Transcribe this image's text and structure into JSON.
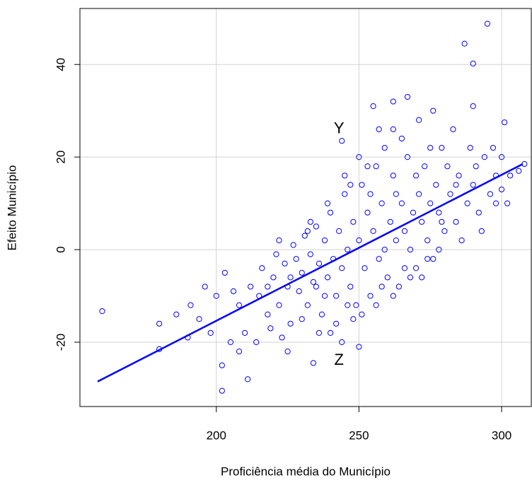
{
  "chart_data": {
    "type": "scatter",
    "xlabel": "Proficiência média do Município",
    "ylabel": "Efeito Município",
    "xlim": [
      152.2,
      310.4
    ],
    "ylim": [
      -33.9,
      52.1
    ],
    "xticks": [
      200,
      250,
      300
    ],
    "yticks": [
      -20,
      0,
      20,
      40
    ],
    "grid": true,
    "color": "#0000ff",
    "x": [
      160,
      180,
      180,
      202,
      202,
      211,
      234,
      244,
      250,
      287,
      290,
      295,
      290,
      301,
      267,
      255,
      262,
      306,
      308,
      300,
      300,
      298,
      186,
      191,
      196,
      200,
      203,
      205,
      208,
      215,
      218,
      220,
      222,
      224,
      225,
      226,
      228,
      229,
      230,
      231,
      232,
      233,
      234,
      235,
      236,
      237,
      238,
      239,
      240,
      241,
      242,
      243,
      244,
      245,
      246,
      247,
      248,
      249,
      250,
      251,
      252,
      253,
      254,
      255,
      256,
      257,
      258,
      259,
      260,
      261,
      262,
      263,
      264,
      265,
      266,
      267,
      268,
      269,
      270,
      271,
      272,
      273,
      274,
      275,
      276,
      277,
      278,
      279,
      280,
      282,
      284,
      285,
      288,
      290,
      292,
      294,
      296,
      298,
      303,
      210,
      212,
      214,
      216,
      219,
      221,
      223,
      227,
      230,
      233,
      236,
      239,
      242,
      245,
      248,
      251,
      253,
      256,
      259,
      262,
      265,
      268,
      272,
      275,
      278,
      281,
      286,
      289,
      293,
      283,
      271,
      266,
      244,
      246,
      238,
      235,
      232,
      226,
      222,
      218,
      208,
      206,
      194,
      198,
      190,
      225,
      240,
      257,
      262,
      276,
      250,
      247,
      254,
      258,
      263,
      270,
      274,
      279,
      284,
      291,
      297,
      302
    ],
    "y": [
      -13.3,
      -16,
      -21.5,
      -30.5,
      -25,
      -28,
      -24.5,
      23.5,
      -21,
      44.5,
      40.2,
      48.8,
      31,
      27.5,
      33,
      31,
      32,
      17,
      18.5,
      20,
      13,
      10,
      -14,
      -12,
      -8,
      -10,
      -5,
      -20,
      -22,
      -10,
      -14,
      -6,
      -12,
      -3,
      -8,
      -16,
      -2,
      -9,
      -5,
      3,
      -12,
      -1,
      -7,
      5,
      -3,
      -14,
      2,
      -6,
      8,
      -2,
      -10,
      4,
      -4,
      12,
      0,
      -8,
      6,
      -12,
      2,
      14,
      -4,
      8,
      -10,
      4,
      18,
      -2,
      10,
      0,
      -6,
      6,
      16,
      2,
      -8,
      10,
      4,
      20,
      0,
      8,
      -4,
      12,
      6,
      18,
      2,
      10,
      -2,
      14,
      8,
      22,
      4,
      12,
      6,
      16,
      10,
      14,
      8,
      20,
      12,
      16,
      16,
      -18,
      -8,
      -20,
      -4,
      -17,
      -1,
      -19,
      1,
      -15,
      6,
      -18,
      10,
      -16,
      16,
      -15,
      -14,
      18,
      -12,
      22,
      -10,
      24,
      -6,
      -6,
      22,
      0,
      18,
      2,
      22,
      4,
      26,
      28,
      -4,
      -20,
      -12,
      -10,
      -8,
      4,
      -6,
      2,
      -8,
      -12,
      -9,
      -15,
      -18,
      -19,
      -22,
      -18,
      26,
      26,
      30,
      20,
      14,
      12,
      -8,
      12,
      16,
      -2,
      6,
      14,
      18,
      22,
      10
    ],
    "fit": {
      "x": [
        158.4,
        307.4
      ],
      "y": [
        -28.5,
        18.5
      ]
    },
    "annotations": [
      {
        "text": "Y",
        "x": 243,
        "y": 26
      },
      {
        "text": "Z",
        "x": 243,
        "y": -24
      }
    ]
  }
}
